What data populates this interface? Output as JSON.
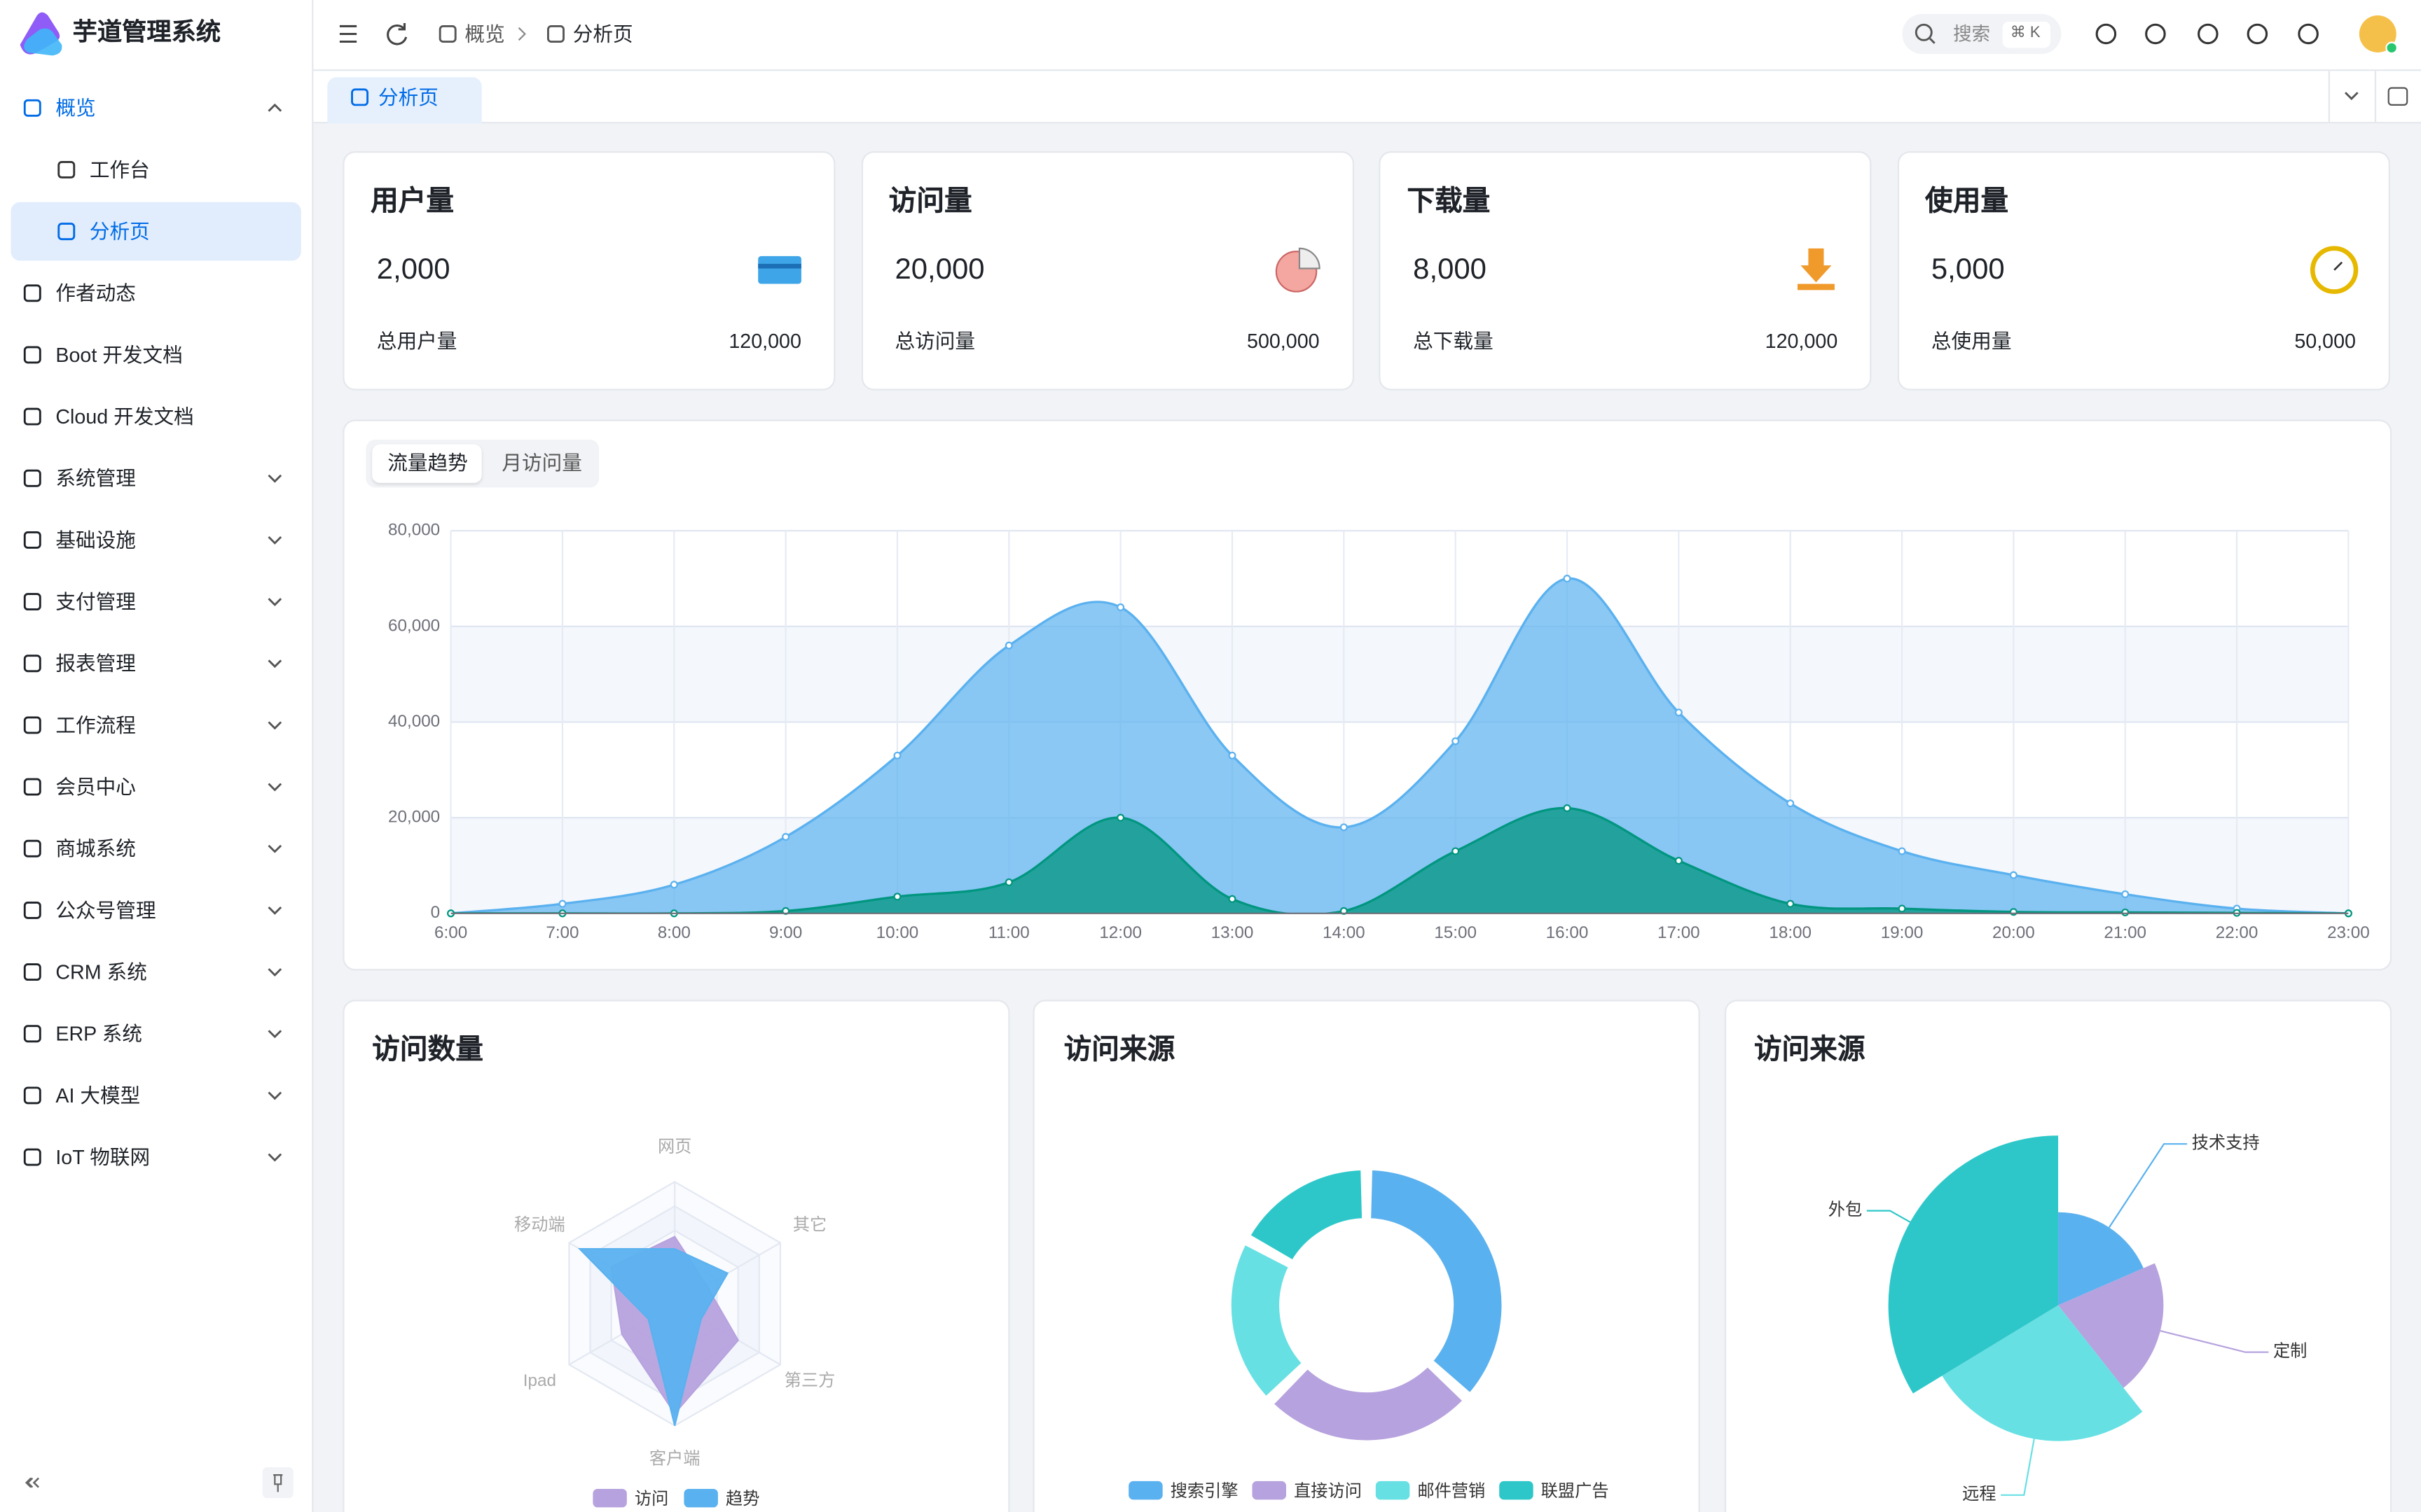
{
  "app": {
    "name": "芋道管理系统"
  },
  "sidebar": {
    "menu": [
      {
        "label": "概览",
        "expanded": true,
        "children": [
          {
            "label": "工作台"
          },
          {
            "label": "分析页",
            "active": true
          }
        ]
      },
      {
        "label": "作者动态"
      },
      {
        "label": "Boot 开发文档"
      },
      {
        "label": "Cloud 开发文档"
      },
      {
        "label": "系统管理",
        "expandable": true
      },
      {
        "label": "基础设施",
        "expandable": true
      },
      {
        "label": "支付管理",
        "expandable": true
      },
      {
        "label": "报表管理",
        "expandable": true
      },
      {
        "label": "工作流程",
        "expandable": true
      },
      {
        "label": "会员中心",
        "expandable": true
      },
      {
        "label": "商城系统",
        "expandable": true
      },
      {
        "label": "公众号管理",
        "expandable": true
      },
      {
        "label": "CRM 系统",
        "expandable": true
      },
      {
        "label": "ERP 系统",
        "expandable": true
      },
      {
        "label": "AI 大模型",
        "expandable": true
      },
      {
        "label": "IoT 物联网",
        "expandable": true
      }
    ]
  },
  "header": {
    "breadcrumb": [
      "概览",
      "分析页"
    ],
    "search": "搜索",
    "shortcut": "⌘ K"
  },
  "tabs": [
    "分析页"
  ],
  "cards": [
    {
      "title": "用户量",
      "value": "2,000",
      "total_label": "总用户量",
      "total": "120,000"
    },
    {
      "title": "访问量",
      "value": "20,000",
      "total_label": "总访问量",
      "total": "500,000"
    },
    {
      "title": "下载量",
      "value": "8,000",
      "total_label": "总下载量",
      "total": "120,000"
    },
    {
      "title": "使用量",
      "value": "5,000",
      "total_label": "总使用量",
      "total": "50,000"
    }
  ],
  "chart_tabs": [
    "流量趋势",
    "月访问量"
  ],
  "chart_data": [
    {
      "type": "area",
      "categories": [
        "6:00",
        "7:00",
        "8:00",
        "9:00",
        "10:00",
        "11:00",
        "12:00",
        "13:00",
        "14:00",
        "15:00",
        "16:00",
        "17:00",
        "18:00",
        "19:00",
        "20:00",
        "21:00",
        "22:00",
        "23:00"
      ],
      "series": [
        {
          "color": "#5ab1ef",
          "values": [
            0,
            2000,
            6000,
            16000,
            33000,
            56000,
            64000,
            33000,
            18000,
            36000,
            70000,
            42000,
            23000,
            13000,
            8000,
            4000,
            1000,
            0
          ]
        },
        {
          "color": "#019680",
          "values": [
            0,
            0,
            0,
            500,
            3500,
            6500,
            20000,
            3000,
            500,
            13000,
            22000,
            11000,
            2000,
            1000,
            300,
            200,
            100,
            0
          ]
        }
      ],
      "ylim": [
        0,
        80000
      ],
      "yticks": [
        0,
        {
          "value": 20000,
          "label": "20,000"
        },
        {
          "value": 40000,
          "label": "40,000"
        },
        {
          "value": 60000,
          "label": "60,000"
        },
        {
          "value": 80000,
          "label": "80,000"
        }
      ],
      "grid": true
    },
    {
      "type": "radar",
      "title": "访问数量",
      "indicators": [
        "网页",
        "其它",
        "第三方",
        "客户端",
        "Ipad",
        "移动端"
      ],
      "rlim": [
        0,
        100
      ],
      "series": [
        {
          "name": "访问",
          "color": "#b6a2de",
          "values": [
            55,
            30,
            60,
            90,
            50,
            60
          ]
        },
        {
          "name": "趋势",
          "color": "#5ab1ef",
          "values": [
            45,
            50,
            25,
            100,
            25,
            90
          ]
        }
      ]
    },
    {
      "type": "donut",
      "title": "访问来源",
      "categories": [
        "搜索引擎",
        "直接访问",
        "邮件营销",
        "联盟广告"
      ],
      "values": [
        1048,
        735,
        580,
        484
      ],
      "colors": [
        "#5ab1ef",
        "#b6a2de",
        "#67e0e3",
        "#2ec7c9"
      ]
    },
    {
      "type": "rose",
      "title": "访问来源",
      "categories": [
        "技术支持",
        "定制",
        "远程",
        "外包"
      ],
      "values": [
        274,
        310,
        400,
        500
      ],
      "colors": [
        "#5ab1ef",
        "#b6a2de",
        "#67e0e3",
        "#2ec7c9"
      ]
    }
  ]
}
